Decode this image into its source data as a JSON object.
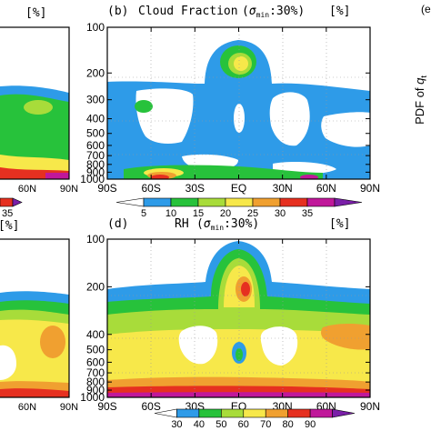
{
  "colors": {
    "blue": "#2e9be8",
    "green": "#27c23b",
    "yellow_green": "#a8dc3a",
    "yellow": "#f7e84a",
    "orange": "#f0a030",
    "red": "#e63020",
    "dark_red": "#c0162c",
    "magenta": "#c0189a",
    "purple": "#7a1fa8"
  },
  "chart_data": [
    {
      "type": "contour",
      "panel": "a",
      "partial": true,
      "title_fragment": "[%]",
      "x_ticks_visible": [
        "60N",
        "90N"
      ],
      "colorbar_visible": [
        "35"
      ]
    },
    {
      "type": "contour",
      "panel": "b",
      "panel_label": "(b)",
      "title": "Cloud Fraction",
      "sigma_text": "(σmin:30%)",
      "sigma_sym": "σ",
      "sigma_sub": "min",
      "sigma_val": ":30%)",
      "units": "[%]",
      "x_ticks": [
        "90S",
        "60S",
        "30S",
        "EQ",
        "30N",
        "60N",
        "90N"
      ],
      "y_ticks": [
        "100",
        "200",
        "300",
        "400",
        "500",
        "600",
        "700",
        "800",
        "900",
        "1000"
      ],
      "y_range_hPa": [
        1000,
        100
      ],
      "y_scale": "log-pressure",
      "levels": [
        5,
        10,
        15,
        20,
        25,
        30,
        35
      ],
      "colorbar_labels": [
        "5",
        "10",
        "15",
        "20",
        "25",
        "30",
        "35"
      ]
    },
    {
      "type": "contour",
      "panel": "c",
      "partial": true,
      "title_fragment": "[%]",
      "x_ticks_visible": [
        "60N",
        "90N"
      ]
    },
    {
      "type": "contour",
      "panel": "d",
      "panel_label": "(d)",
      "title": "RH",
      "sigma_text": "(σmin:30%)",
      "sigma_sym": "σ",
      "sigma_sub": "min",
      "sigma_val": ":30%)",
      "units": "[%]",
      "x_ticks": [
        "90S",
        "60S",
        "30S",
        "EQ",
        "30N",
        "60N",
        "90N"
      ],
      "y_ticks": [
        "100",
        "200",
        "400",
        "500",
        "600",
        "700",
        "800",
        "900",
        "1000"
      ],
      "y_range_hPa": [
        1000,
        100
      ],
      "y_scale": "log-pressure",
      "levels": [
        30,
        40,
        50,
        60,
        70,
        80,
        90
      ],
      "colorbar_labels": [
        "30",
        "40",
        "50",
        "60",
        "70",
        "80",
        "90"
      ]
    }
  ],
  "side_panel": {
    "ylabel_text": "PDF of ",
    "ylabel_var": "q",
    "ylabel_sub": "t",
    "panel_label_fragment": "(e"
  }
}
